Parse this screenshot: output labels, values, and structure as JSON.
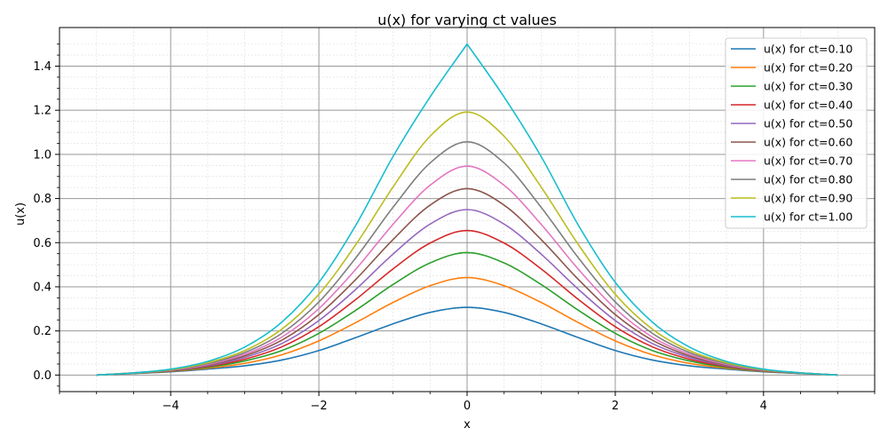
{
  "chart_data": {
    "type": "line",
    "title": "u(x) for varying ct values",
    "xlabel": "x",
    "ylabel": "u(x)",
    "xlim": [
      -5.5,
      5.5
    ],
    "ylim": [
      -0.075,
      1.575
    ],
    "x_ticks": [
      -4,
      -2,
      0,
      2,
      4
    ],
    "x_tick_labels": [
      "−4",
      "−2",
      "0",
      "2",
      "4"
    ],
    "y_ticks": [
      0.0,
      0.2,
      0.4,
      0.6,
      0.8,
      1.0,
      1.2,
      1.4
    ],
    "y_tick_labels": [
      "0.0",
      "0.2",
      "0.4",
      "0.6",
      "0.8",
      "1.0",
      "1.2",
      "1.4"
    ],
    "grid": true,
    "minor_grid": true,
    "legend_position": "top-right",
    "x": [
      -5,
      -4.5,
      -4,
      -3.5,
      -3,
      -2.5,
      -2,
      -1.5,
      -1,
      -0.5,
      0,
      0.5,
      1,
      1.5,
      2,
      2.5,
      3,
      3.5,
      4,
      4.5,
      5
    ],
    "series": [
      {
        "name": "u(x) for ct=0.10",
        "color": "#1f77b4",
        "values": [
          0.0,
          0.007,
          0.015,
          0.027,
          0.042,
          0.068,
          0.111,
          0.17,
          0.232,
          0.284,
          0.307,
          0.284,
          0.232,
          0.17,
          0.111,
          0.068,
          0.042,
          0.027,
          0.015,
          0.007,
          0.0
        ]
      },
      {
        "name": "u(x) for ct=0.20",
        "color": "#ff7f0e",
        "values": [
          0.0,
          0.008,
          0.017,
          0.031,
          0.053,
          0.092,
          0.155,
          0.238,
          0.329,
          0.405,
          0.442,
          0.405,
          0.329,
          0.238,
          0.155,
          0.092,
          0.053,
          0.031,
          0.017,
          0.008,
          0.0
        ]
      },
      {
        "name": "u(x) for ct=0.30",
        "color": "#2ca02c",
        "values": [
          0.0,
          0.008,
          0.018,
          0.035,
          0.064,
          0.111,
          0.189,
          0.294,
          0.41,
          0.508,
          0.555,
          0.508,
          0.41,
          0.294,
          0.189,
          0.111,
          0.064,
          0.035,
          0.018,
          0.008,
          0.0
        ]
      },
      {
        "name": "u(x) for ct=0.40",
        "color": "#d62728",
        "values": [
          0.0,
          0.009,
          0.019,
          0.039,
          0.072,
          0.128,
          0.219,
          0.343,
          0.481,
          0.598,
          0.655,
          0.598,
          0.481,
          0.343,
          0.219,
          0.128,
          0.072,
          0.039,
          0.019,
          0.009,
          0.0
        ]
      },
      {
        "name": "u(x) for ct=0.50",
        "color": "#9467bd",
        "values": [
          0.0,
          0.009,
          0.02,
          0.042,
          0.08,
          0.143,
          0.247,
          0.389,
          0.548,
          0.684,
          0.75,
          0.684,
          0.548,
          0.389,
          0.247,
          0.143,
          0.08,
          0.042,
          0.02,
          0.009,
          0.0
        ]
      },
      {
        "name": "u(x) for ct=0.60",
        "color": "#8c564b",
        "values": [
          0.0,
          0.009,
          0.021,
          0.045,
          0.087,
          0.158,
          0.274,
          0.434,
          0.614,
          0.77,
          0.845,
          0.77,
          0.614,
          0.434,
          0.274,
          0.158,
          0.087,
          0.045,
          0.021,
          0.009,
          0.0
        ]
      },
      {
        "name": "u(x) for ct=0.70",
        "color": "#e377c2",
        "values": [
          0.0,
          0.01,
          0.022,
          0.048,
          0.094,
          0.172,
          0.301,
          0.48,
          0.683,
          0.86,
          0.947,
          0.86,
          0.683,
          0.48,
          0.301,
          0.172,
          0.094,
          0.048,
          0.022,
          0.01,
          0.0
        ]
      },
      {
        "name": "u(x) for ct=0.80",
        "color": "#7f7f7f",
        "values": [
          0.0,
          0.01,
          0.023,
          0.052,
          0.102,
          0.189,
          0.331,
          0.532,
          0.76,
          0.961,
          1.057,
          0.961,
          0.76,
          0.532,
          0.331,
          0.189,
          0.102,
          0.052,
          0.023,
          0.01,
          0.0
        ]
      },
      {
        "name": "u(x) for ct=0.90",
        "color": "#bcbd22",
        "values": [
          0.0,
          0.01,
          0.025,
          0.056,
          0.111,
          0.208,
          0.366,
          0.592,
          0.852,
          1.082,
          1.192,
          1.082,
          0.852,
          0.592,
          0.366,
          0.208,
          0.111,
          0.056,
          0.025,
          0.01,
          0.0
        ]
      },
      {
        "name": "u(x) for ct=1.00",
        "color": "#17becf",
        "values": [
          0.0,
          0.01,
          0.027,
          0.062,
          0.127,
          0.24,
          0.42,
          0.68,
          0.99,
          1.26,
          1.5,
          1.26,
          0.99,
          0.68,
          0.42,
          0.24,
          0.127,
          0.062,
          0.027,
          0.01,
          0.0
        ]
      }
    ]
  }
}
